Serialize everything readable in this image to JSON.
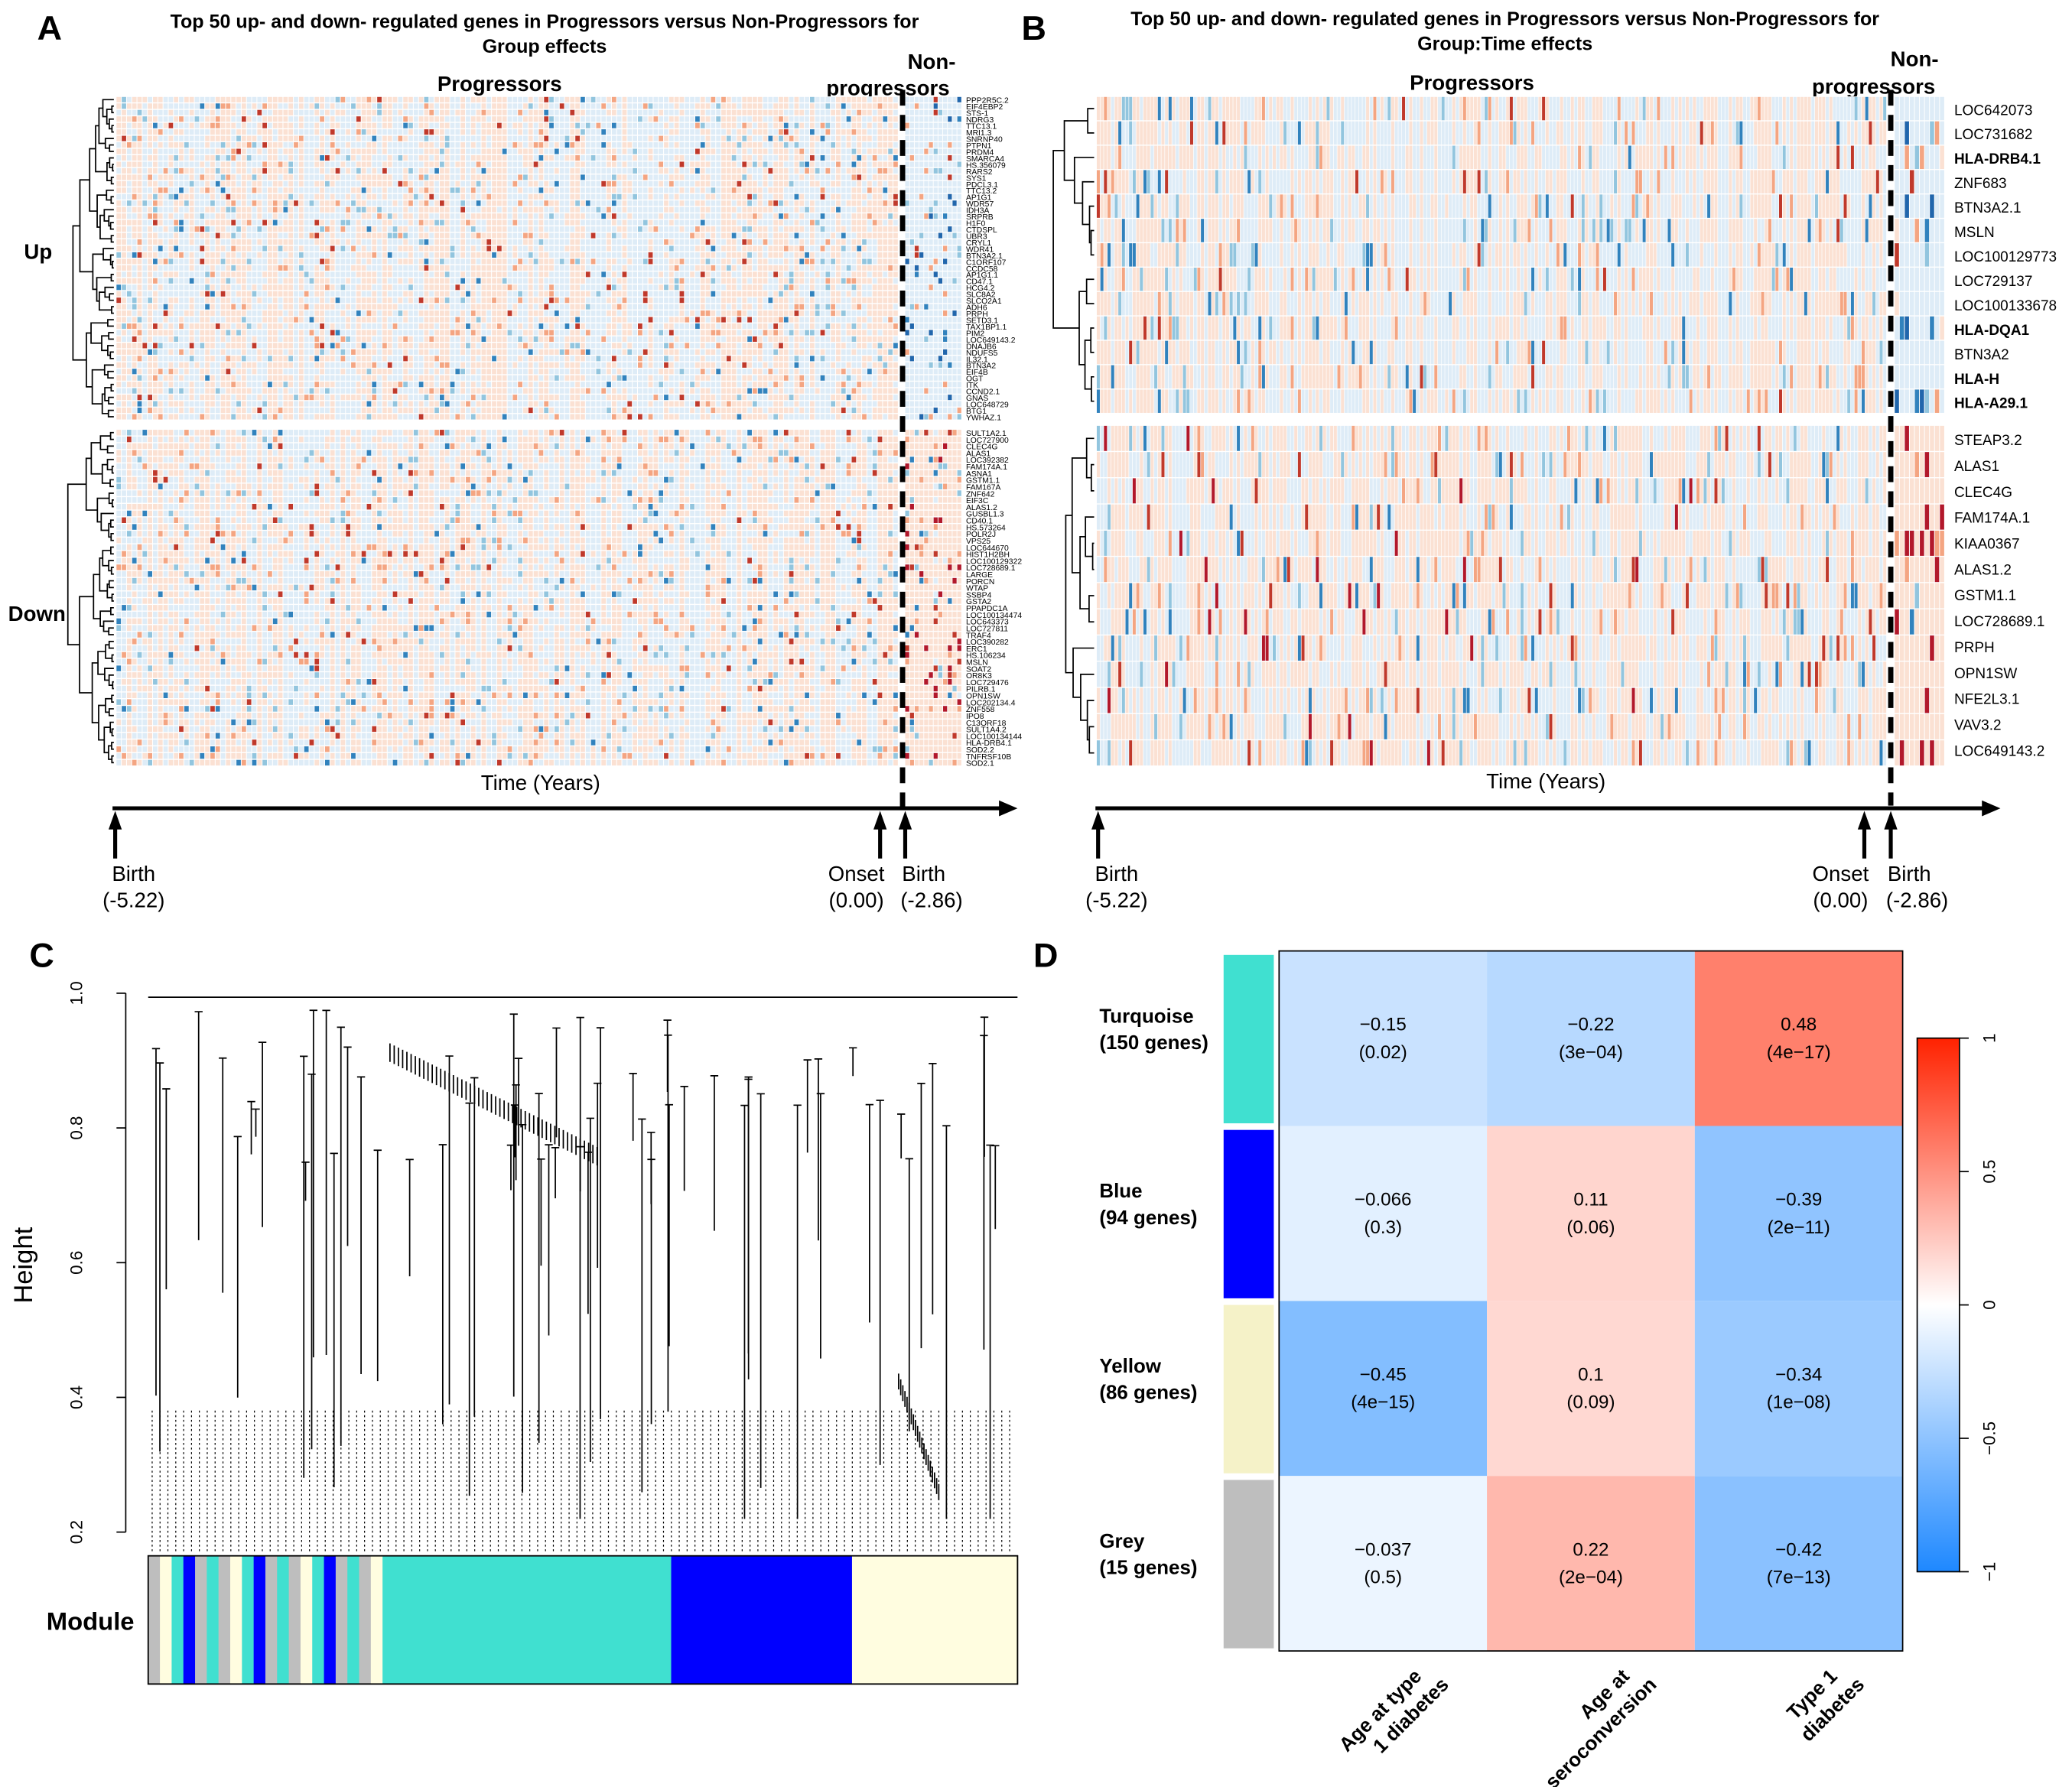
{
  "panels": {
    "A": {
      "letter": "A",
      "title_line1": "Top 50 up- and down- regulated genes in Progressors versus Non-Progressors for",
      "title_line2": "Group effects"
    },
    "B": {
      "letter": "B",
      "title_line1": "Top 50 up- and down- regulated genes in Progressors versus Non-Progressors for",
      "title_line2": "Group:Time effects"
    },
    "C": {
      "letter": "C"
    },
    "D": {
      "letter": "D"
    }
  },
  "chart_data": [
    {
      "type": "heatmap",
      "panel": "A",
      "group_labels": {
        "progressors": "Progressors",
        "non_line1": "Non-",
        "non_line2": "progressors"
      },
      "row_groups": {
        "up": "Up",
        "down": "Down"
      },
      "xlabel": "Time (Years)",
      "timeline": [
        {
          "label": "Birth",
          "value": "(-5.22)"
        },
        {
          "label": "Onset",
          "value": "(0.00)"
        },
        {
          "label": "Birth",
          "value": "(-2.86)"
        }
      ],
      "up_genes": [
        "PPP2R5C.2",
        "EIF4EBP2",
        "STS-1",
        "NDRG3",
        "TTC13.1",
        "MRI1.3",
        "SNRNP40",
        "PTPN1",
        "PRDM4",
        "SMARCA4",
        "HS.356079",
        "RARS2",
        "SYS1",
        "PDCL3.1",
        "TTC13.2",
        "AP1G1",
        "WDR57",
        "IDH3A",
        "SRPRB",
        "H1F0",
        "CTDSPL",
        "UBR3",
        "CRYL1",
        "WDR41",
        "BTN3A2.1",
        "C1ORF107",
        "CCDC58",
        "AP1G1.1",
        "CD47.1",
        "HCG4.2",
        "SLC8A2",
        "SLCO2A1",
        "ADH6",
        "PRPH",
        "SETD3.1",
        "TAX1BP1.1",
        "PIM2",
        "LOC649143.2",
        "DNAJB6",
        "NDUFS5",
        "IL32.1",
        "BTN3A2",
        "EIF4B",
        "OGT",
        "ITK",
        "CCND2.1",
        "GNAS",
        "LOC648729",
        "BTG1",
        "YWHAZ.1"
      ],
      "down_genes": [
        "SULT1A2.1",
        "LOC727900",
        "CLEC4G",
        "ALAS1",
        "LOC392382",
        "FAM174A.1",
        "ASNA1",
        "GSTM1.1",
        "FAM167A",
        "ZNF642",
        "EIF3C",
        "ALAS1.2",
        "GUSBL1.3",
        "CD40.1",
        "HS.573264",
        "POLR2J",
        "VPS25",
        "LOC644670",
        "HIST1H2BH",
        "LOC100129322",
        "LOC728689.1",
        "LARGE",
        "PORCN",
        "WTAP",
        "SSBP4",
        "GSTA2",
        "PPAPDC1A",
        "LOC100134474",
        "LOC643373",
        "LOC727811",
        "TRAF4",
        "LOC390282",
        "ERC1",
        "HS.106234",
        "MSLN",
        "SOAT2",
        "OR8K3",
        "LOC729476",
        "PILRB.1",
        "OPN1SW",
        "LOC202134.4",
        "ZNF558",
        "IPO8",
        "C13ORF18",
        "SULT1A4.2",
        "LOC100134144",
        "HLA-DRB4.1",
        "SOD2.2",
        "TNFRSF10B",
        "SOD2.1"
      ]
    },
    {
      "type": "heatmap",
      "panel": "B",
      "group_labels": {
        "progressors": "Progressors",
        "non_line1": "Non-",
        "non_line2": "progressors"
      },
      "xlabel": "Time (Years)",
      "timeline": [
        {
          "label": "Birth",
          "value": "(-5.22)"
        },
        {
          "label": "Onset",
          "value": "(0.00)"
        },
        {
          "label": "Birth",
          "value": "(-2.86)"
        }
      ],
      "up_genes": [
        "LOC642073",
        "LOC731682",
        "HLA-DRB4.1",
        "ZNF683",
        "BTN3A2.1",
        "MSLN",
        "LOC100129773",
        "LOC729137",
        "LOC100133678",
        "HLA-DQA1",
        "BTN3A2",
        "HLA-H",
        "HLA-A29.1"
      ],
      "up_bold": [
        false,
        false,
        true,
        false,
        false,
        false,
        false,
        false,
        false,
        true,
        false,
        true,
        true
      ],
      "down_genes": [
        "STEAP3.2",
        "ALAS1",
        "CLEC4G",
        "FAM174A.1",
        "KIAA0367",
        "ALAS1.2",
        "GSTM1.1",
        "LOC728689.1",
        "PRPH",
        "OPN1SW",
        "NFE2L3.1",
        "VAV3.2",
        "LOC649143.2"
      ]
    },
    {
      "type": "dendrogram",
      "panel": "C",
      "ylabel": "Height",
      "ylim": [
        0.2,
        1.0
      ],
      "yticks": [
        "0.2",
        "0.4",
        "0.6",
        "0.8",
        "1.0"
      ],
      "module_label": "Module",
      "modules": [
        {
          "name": "grey",
          "color": "#bebebe",
          "genes": 15
        },
        {
          "name": "turquoise",
          "color": "#40e0d0",
          "genes": 150
        },
        {
          "name": "blue",
          "color": "#0000ff",
          "genes": 94
        },
        {
          "name": "yellow",
          "color": "#fffde0",
          "genes": 86
        }
      ]
    },
    {
      "type": "heatmap",
      "panel": "D",
      "rows": [
        {
          "name": "Turquoise",
          "count": "(150 genes)",
          "color": "#40e0d0"
        },
        {
          "name": "Blue",
          "count": "(94 genes)",
          "color": "#0000ff"
        },
        {
          "name": "Yellow",
          "count": "(86 genes)",
          "color": "#f5f2c8"
        },
        {
          "name": "Grey",
          "count": "(15 genes)",
          "color": "#bebebe"
        }
      ],
      "columns": [
        [
          "Age at type",
          "1 diabetes"
        ],
        [
          "Age at",
          "seroconversion"
        ],
        [
          "Type 1",
          "diabetes"
        ]
      ],
      "values": [
        [
          -0.15,
          -0.22,
          0.48
        ],
        [
          -0.066,
          0.11,
          -0.39
        ],
        [
          -0.45,
          0.1,
          -0.34
        ],
        [
          -0.037,
          0.22,
          -0.42
        ]
      ],
      "value_labels": [
        [
          "−0.15",
          "−0.22",
          "0.48"
        ],
        [
          "−0.066",
          "0.11",
          "−0.39"
        ],
        [
          "−0.45",
          "0.1",
          "−0.34"
        ],
        [
          "−0.037",
          "0.22",
          "−0.42"
        ]
      ],
      "pvalues": [
        [
          "(0.02)",
          "(3e−04)",
          "(4e−17)"
        ],
        [
          "(0.3)",
          "(0.06)",
          "(2e−11)"
        ],
        [
          "(4e−15)",
          "(0.09)",
          "(1e−08)"
        ],
        [
          "(0.5)",
          "(2e−04)",
          "(7e−13)"
        ]
      ],
      "colorbar": {
        "range": [
          -1,
          1
        ],
        "ticks": [
          "1",
          "0.5",
          "0",
          "−0.5",
          "−1"
        ],
        "low": "#1e88ff",
        "mid": "#ffffff",
        "high": "#ff2200"
      }
    }
  ]
}
